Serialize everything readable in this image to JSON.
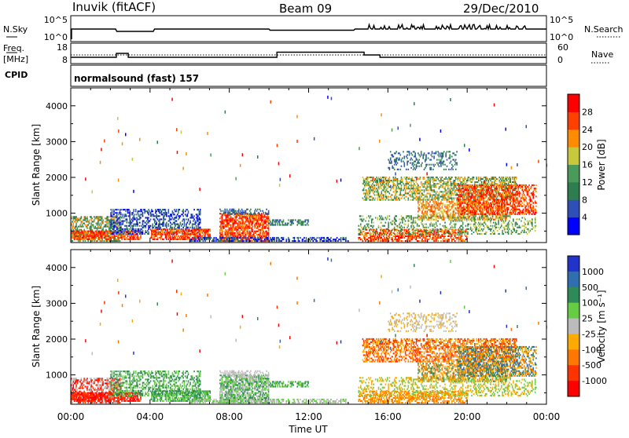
{
  "header": {
    "station": "Inuvik (fitACF)",
    "beam": "Beam 09",
    "date": "29/Dec/2010"
  },
  "top_panel": {
    "left_label": "N.Sky",
    "left_ticks": [
      "10^5",
      "10^0"
    ],
    "right_ticks": [
      "10^5",
      "10^0"
    ],
    "right_label": "N.Search"
  },
  "freq_panel": {
    "left_label_1": "Freq.",
    "left_label_2": "[MHz]",
    "left_ticks": [
      "18",
      "8"
    ],
    "right_ticks": [
      "60",
      "0"
    ],
    "right_label": "Nave"
  },
  "cpid": {
    "label": "CPID",
    "mode": "normalsound (fast) 157"
  },
  "chart_data": [
    {
      "type": "heatmap",
      "name": "Power",
      "xlabel": "Time UT",
      "ylabel": "Slant Range [km]",
      "x_ticks": [
        "00:00",
        "04:00",
        "08:00",
        "12:00",
        "16:00",
        "20:00",
        "00:00"
      ],
      "y_ticks": [
        1000,
        2000,
        3000,
        4000
      ],
      "ylim": [
        180,
        4500
      ],
      "colorbar_label": "Power [dB]",
      "colorbar_ticks": [
        "4",
        "8",
        "12",
        "16",
        "20",
        "24",
        "28"
      ],
      "colorbar_colors": [
        "#0000ff",
        "#2f4fb8",
        "#2e7d4f",
        "#4a9a5a",
        "#c8c83c",
        "#ff8c00",
        "#ff4000",
        "#ff0000"
      ]
    },
    {
      "type": "heatmap",
      "name": "Velocity",
      "xlabel": "Time UT",
      "ylabel": "Slant Range [km]",
      "x_ticks": [
        "00:00",
        "04:00",
        "08:00",
        "12:00",
        "16:00",
        "20:00",
        "00:00"
      ],
      "y_ticks": [
        1000,
        2000,
        3000,
        4000
      ],
      "ylim": [
        180,
        4500
      ],
      "colorbar_label": "Velocity [m s⁻¹]",
      "colorbar_ticks": [
        "1000",
        "500",
        "100",
        "25",
        "-25",
        "-100",
        "-500",
        "-1000"
      ],
      "colorbar_colors": [
        "#2233cc",
        "#2f6fb0",
        "#2e8b57",
        "#66cc44",
        "#bbbbbb",
        "#ffaa00",
        "#ff7700",
        "#ff3300",
        "#ff0000"
      ]
    }
  ]
}
